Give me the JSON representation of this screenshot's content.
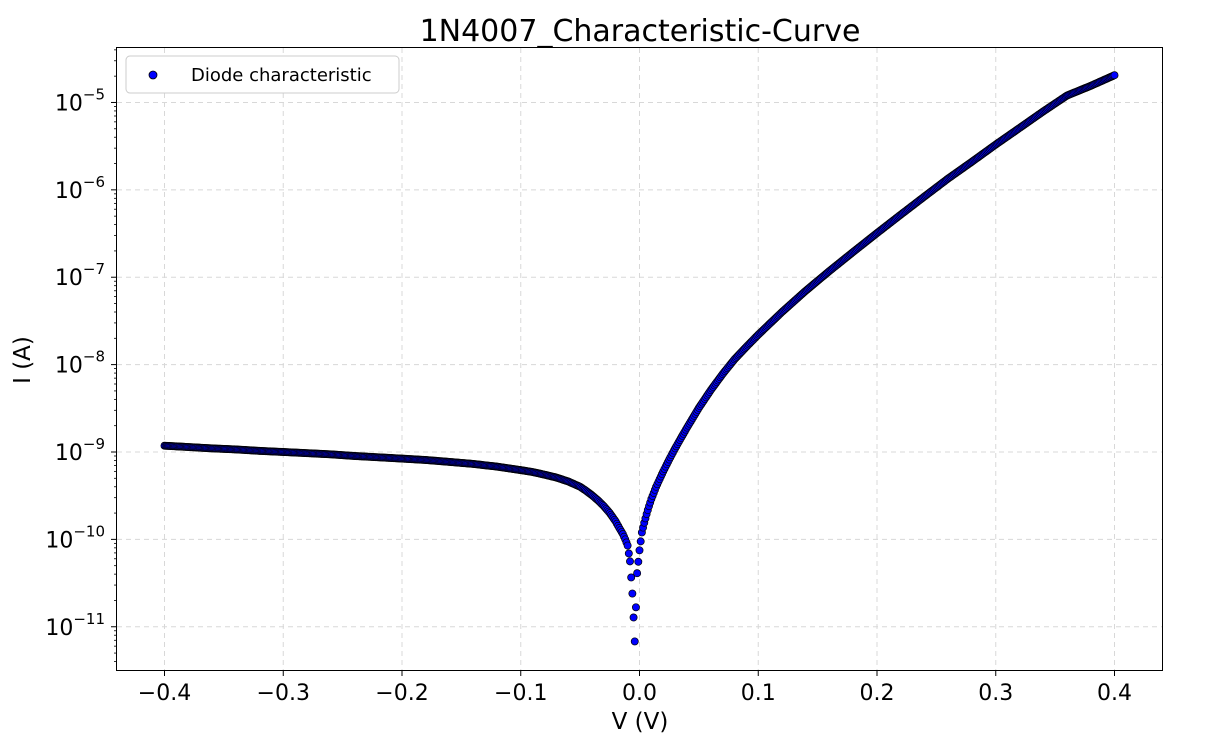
{
  "chart_data": {
    "type": "scatter",
    "title": "1N4007_Characteristic-Curve",
    "xlabel": "V (V)",
    "ylabel": "I (A)",
    "xlim": [
      -0.44,
      0.44
    ],
    "ylim": [
      3.2e-12,
      4.2e-05
    ],
    "yscale": "log",
    "grid": true,
    "legend_position": "top-left",
    "x_ticks": [
      {
        "value": -0.4,
        "label": "−0.4"
      },
      {
        "value": -0.3,
        "label": "−0.3"
      },
      {
        "value": -0.2,
        "label": "−0.2"
      },
      {
        "value": -0.1,
        "label": "−0.1"
      },
      {
        "value": 0.0,
        "label": "0.0"
      },
      {
        "value": 0.1,
        "label": "0.1"
      },
      {
        "value": 0.2,
        "label": "0.2"
      },
      {
        "value": 0.3,
        "label": "0.3"
      },
      {
        "value": 0.4,
        "label": "0.4"
      }
    ],
    "y_ticks": [
      {
        "value": 1e-11,
        "base": "10",
        "exp": "−11"
      },
      {
        "value": 1e-10,
        "base": "10",
        "exp": "−10"
      },
      {
        "value": 1e-09,
        "base": "10",
        "exp": "−9"
      },
      {
        "value": 1e-08,
        "base": "10",
        "exp": "−8"
      },
      {
        "value": 1e-07,
        "base": "10",
        "exp": "−7"
      },
      {
        "value": 1e-06,
        "base": "10",
        "exp": "−6"
      },
      {
        "value": 1e-05,
        "base": "10",
        "exp": "−5"
      }
    ],
    "series": [
      {
        "name": "Diode characteristic",
        "color": "#0000ff",
        "edge_color": "#000000",
        "x": [
          -0.4,
          -0.38,
          -0.36,
          -0.34,
          -0.32,
          -0.3,
          -0.28,
          -0.26,
          -0.24,
          -0.22,
          -0.2,
          -0.18,
          -0.16,
          -0.14,
          -0.12,
          -0.1,
          -0.09,
          -0.08,
          -0.07,
          -0.06,
          -0.05,
          -0.045,
          -0.04,
          -0.035,
          -0.03,
          -0.025,
          -0.02,
          -0.017,
          -0.014,
          -0.012,
          -0.01,
          -0.008,
          -0.006,
          -0.004,
          -0.002,
          0.0,
          0.002,
          0.004,
          0.006,
          0.008,
          0.01,
          0.012,
          0.014,
          0.017,
          0.02,
          0.025,
          0.03,
          0.035,
          0.04,
          0.05,
          0.06,
          0.07,
          0.08,
          0.09,
          0.1,
          0.12,
          0.14,
          0.16,
          0.18,
          0.2,
          0.22,
          0.24,
          0.26,
          0.28,
          0.3,
          0.32,
          0.34,
          0.36,
          0.38,
          0.4
        ],
        "y": [
          1.18e-09,
          1.14e-09,
          1.1e-09,
          1.07e-09,
          1.03e-09,
          1e-09,
          9.7e-10,
          9.4e-10,
          9e-10,
          8.7e-10,
          8.4e-10,
          8.1e-10,
          7.7e-10,
          7.3e-10,
          6.8e-10,
          6.2e-10,
          5.9e-10,
          5.5e-10,
          5.1e-10,
          4.6e-10,
          4e-10,
          3.6e-10,
          3.2e-10,
          2.8e-10,
          2.4e-10,
          2e-10,
          1.6e-10,
          1.35e-10,
          1.15e-10,
          1e-10,
          8.5e-11,
          5.6e-11,
          2.4e-11,
          6.8e-12,
          4.1e-11,
          7.5e-11,
          1.2e-10,
          1.55e-10,
          1.95e-10,
          2.4e-10,
          2.9e-10,
          3.4e-10,
          4e-10,
          4.9e-10,
          6e-10,
          8.2e-10,
          1.1e-09,
          1.45e-09,
          1.9e-09,
          3.2e-09,
          5.1e-09,
          7.8e-09,
          1.15e-08,
          1.6e-08,
          2.2e-08,
          4e-08,
          7e-08,
          1.18e-07,
          1.95e-07,
          3.2e-07,
          5.2e-07,
          8.4e-07,
          1.35e-06,
          2.1e-06,
          3.3e-06,
          5.1e-06,
          7.9e-06,
          1.2e-05,
          1.55e-05,
          2.05e-05
        ]
      }
    ]
  }
}
